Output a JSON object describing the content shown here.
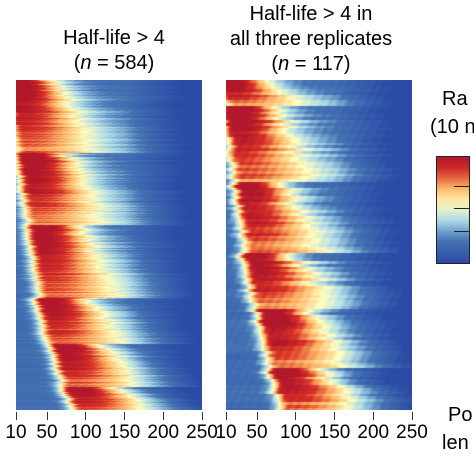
{
  "panels": [
    {
      "title_line1": "Half-life > 4",
      "title_line2": "",
      "n_prefix": "(",
      "n_var": "n",
      "n_value": " = 584)"
    },
    {
      "title_line1": "Half-life > 4 in",
      "title_line2": "all three replicates",
      "n_prefix": "(",
      "n_var": "n",
      "n_value": " = 117)"
    }
  ],
  "side_labels": {
    "legend_title_line1": "Ra",
    "legend_title_line2": "(10 n",
    "xlabel_line1": "Po",
    "xlabel_line2": "len"
  },
  "colors": {
    "low": "#2c4ba6",
    "mid_low": "#abd9e9",
    "mid": "#ffffbf",
    "mid_high": "#fdae61",
    "high": "#b2182b"
  },
  "chart_data": [
    {
      "type": "heatmap",
      "title": "Half-life > 4 (n = 584)",
      "xlabel": "",
      "x_ticks": [
        10,
        50,
        100,
        150,
        200,
        250
      ],
      "xlim": [
        10,
        250
      ],
      "rows": 584,
      "cluster_peaks_x": [
        15,
        30,
        45,
        55,
        75,
        90
      ],
      "cluster_row_fractions": [
        0.22,
        0.22,
        0.22,
        0.14,
        0.13,
        0.07
      ]
    },
    {
      "type": "heatmap",
      "title": "Half-life > 4 in all three replicates (n = 117)",
      "xlabel": "",
      "x_ticks": [
        10,
        50,
        100,
        150,
        200,
        250
      ],
      "xlim": [
        10,
        250
      ],
      "rows": 117,
      "cluster_peaks_x": [
        15,
        25,
        40,
        50,
        70,
        85
      ],
      "cluster_row_fractions": [
        0.08,
        0.23,
        0.21,
        0.17,
        0.18,
        0.13
      ]
    }
  ]
}
